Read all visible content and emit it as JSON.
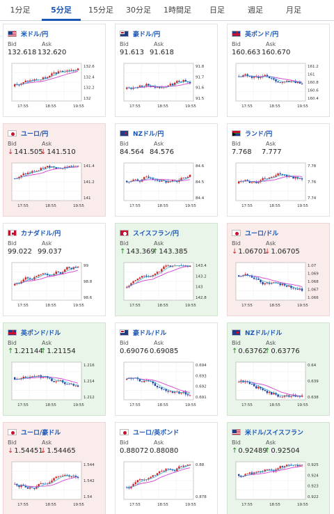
{
  "tabs": [
    "1分足",
    "5分足",
    "15分足",
    "30分足",
    "1時間足",
    "日足",
    "週足",
    "月足"
  ],
  "active_tab": 1,
  "labels": {
    "bid": "Bid",
    "ask": "Ask"
  },
  "colors": {
    "up": "#1a8a1a",
    "down": "#d02222",
    "accent": "#1a56b6",
    "ma": "#d23fd2"
  },
  "cards": [
    {
      "pair": "米ドル/円",
      "flag": "us-flag-icon",
      "state": "none",
      "arrow": "",
      "bid": "132.618",
      "ask": "132.620",
      "ticks": [
        "132.6",
        "132.4",
        "132.2",
        "132"
      ],
      "x_ticks": [
        "17:55",
        "18:55",
        "19:55"
      ]
    },
    {
      "pair": "豪ドル/円",
      "flag": "au-flag-icon",
      "state": "none",
      "arrow": "",
      "bid": "91.613",
      "ask": "91.618",
      "ticks": [
        "91.8",
        "91.7",
        "91.6",
        "91.5"
      ],
      "x_ticks": [
        "17:55",
        "18:55",
        "19:55"
      ]
    },
    {
      "pair": "英ポンド/円",
      "flag": "gb-flag-icon",
      "state": "none",
      "arrow": "",
      "bid": "160.663",
      "ask": "160.670",
      "ticks": [
        "161.2",
        "161",
        "160.8",
        "160.6",
        "160.4"
      ],
      "x_ticks": [
        "17:55",
        "18:55",
        "19:55"
      ]
    },
    {
      "pair": "ユーロ/円",
      "flag": "eu-flag-icon",
      "state": "down",
      "arrow": "down",
      "bid": "141.505",
      "ask": "141.510",
      "ticks": [
        "141.4",
        "141.2",
        "141"
      ],
      "x_ticks": [
        "17:55",
        "18:55",
        "19:55"
      ]
    },
    {
      "pair": "NZドル/円",
      "flag": "nz-flag-icon",
      "state": "none",
      "arrow": "",
      "bid": "84.564",
      "ask": "84.576",
      "ticks": [
        "84.6",
        "84.5",
        "84.4"
      ],
      "x_ticks": [
        "17:55",
        "18:55",
        "19:55"
      ]
    },
    {
      "pair": "ランド/円",
      "flag": "za-flag-icon",
      "state": "none",
      "arrow": "",
      "bid": "7.768",
      "ask": "7.777",
      "ticks": [
        "7.78",
        "7.76",
        "7.74"
      ],
      "x_ticks": [
        "17:55",
        "18:55",
        "19:55"
      ]
    },
    {
      "pair": "カナダドル/円",
      "flag": "ca-flag-icon",
      "state": "none",
      "arrow": "",
      "bid": "99.022",
      "ask": "99.037",
      "ticks": [
        "99",
        "98.8",
        "98.6"
      ],
      "x_ticks": [
        "17:55",
        "18:55",
        "19:55"
      ]
    },
    {
      "pair": "スイスフラン/円",
      "flag": "ch-flag-icon",
      "state": "up",
      "arrow": "up",
      "bid": "143.369",
      "ask": "143.385",
      "ticks": [
        "143.4",
        "143.2",
        "143",
        "142.8"
      ],
      "x_ticks": [
        "17:55",
        "18:55",
        "19:55"
      ]
    },
    {
      "pair": "ユーロ/ドル",
      "flag": "eu-flag-icon",
      "state": "down",
      "arrow": "down",
      "bid": "1.06701",
      "ask": "1.06705",
      "ticks": [
        "1.07",
        "1.069",
        "1.068",
        "1.067",
        "1.066"
      ],
      "x_ticks": [
        "17:55",
        "18:55",
        "19:55"
      ]
    },
    {
      "pair": "英ポンド/ドル",
      "flag": "gb-flag-icon",
      "state": "up",
      "arrow": "up",
      "bid": "1.21144",
      "ask": "1.21154",
      "ticks": [
        "1.216",
        "1.214",
        "1.212"
      ],
      "x_ticks": [
        "17:55",
        "18:55",
        "19:55"
      ]
    },
    {
      "pair": "豪ドル/ドル",
      "flag": "au-flag-icon",
      "state": "none",
      "arrow": "",
      "bid": "0.69076",
      "ask": "0.69085",
      "ticks": [
        "0.694",
        "0.693",
        "0.692",
        "0.691"
      ],
      "x_ticks": [
        "17:55",
        "18:55",
        "19:55"
      ]
    },
    {
      "pair": "NZドル/ドル",
      "flag": "nz-flag-icon",
      "state": "up",
      "arrow": "up",
      "bid": "0.63762",
      "ask": "0.63776",
      "ticks": [
        "0.64",
        "0.639",
        "0.638"
      ],
      "x_ticks": [
        "17:55",
        "18:55",
        "19:55"
      ]
    },
    {
      "pair": "ユーロ/豪ドル",
      "flag": "eu-flag-icon",
      "state": "down",
      "arrow": "down",
      "bid": "1.54451",
      "ask": "1.54465",
      "ticks": [
        "1.544",
        "1.542",
        "1.54"
      ],
      "x_ticks": [
        "17:55",
        "18:55",
        "19:55"
      ]
    },
    {
      "pair": "ユーロ/英ポンド",
      "flag": "eu-flag-icon",
      "state": "none",
      "arrow": "",
      "bid": "0.88072",
      "ask": "0.88080",
      "ticks": [
        "0.88",
        "0.878"
      ],
      "x_ticks": [
        "17:55",
        "18:55",
        "19:55"
      ]
    },
    {
      "pair": "米ドル/スイスフラン",
      "flag": "us-flag-icon",
      "state": "up",
      "arrow": "up",
      "bid": "0.92489",
      "ask": "0.92504",
      "ticks": [
        "0.925",
        "0.924",
        "0.923",
        "0.922"
      ],
      "x_ticks": [
        "17:55",
        "18:55",
        "19:55"
      ]
    }
  ]
}
